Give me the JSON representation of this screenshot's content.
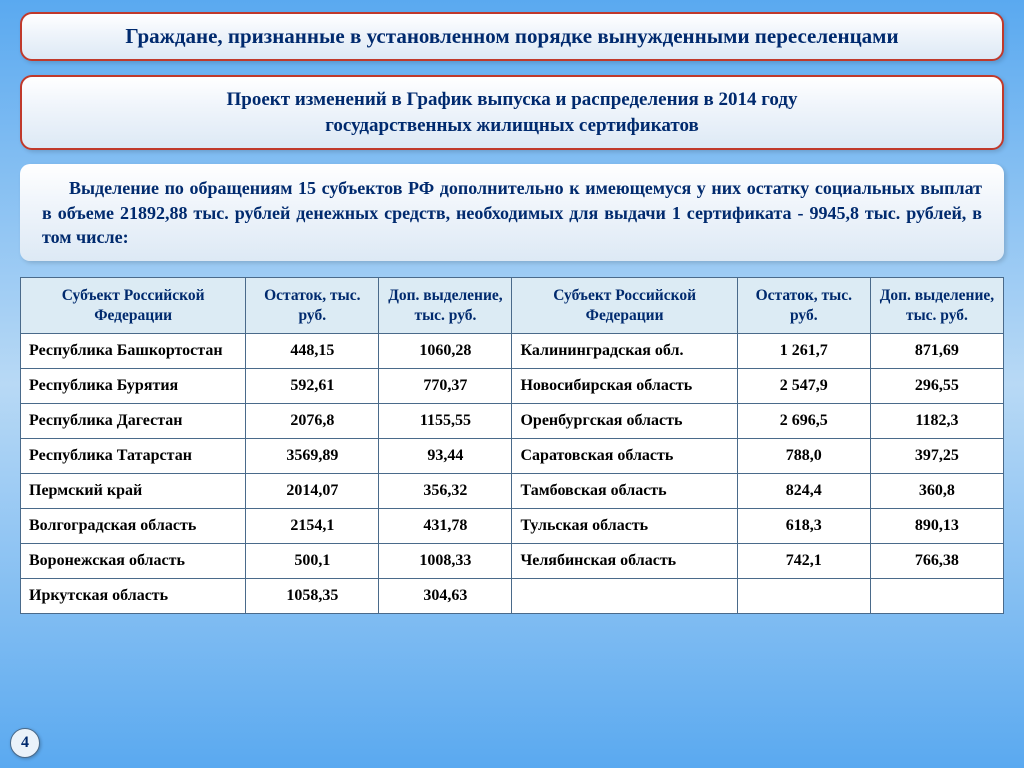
{
  "header": {
    "title": "Граждане, признанные в установленном порядке вынужденными переселенцами"
  },
  "subheader": {
    "line1": "Проект изменений в График выпуска и распределения в 2014 году",
    "line2": "государственных жилищных сертификатов"
  },
  "description": "Выделение по обращениям 15 субъектов РФ дополнительно к имеющемуся у них остатку социальных выплат в объеме 21892,88 тыс. рублей денежных средств, необходимых для выдачи 1 сертификата - 9945,8 тыс. рублей, в том числе:",
  "table": {
    "columns": [
      "Субъект Российской Федерации",
      "Остаток, тыс. руб.",
      "Доп. выделение, тыс. руб.",
      "Субъект Российской Федерации",
      "Остаток, тыс. руб.",
      "Доп. выделение, тыс. руб."
    ],
    "rows": [
      [
        "Республика Башкортостан",
        "448,15",
        "1060,28",
        "Калининградская обл.",
        "1 261,7",
        "871,69"
      ],
      [
        "Республика Бурятия",
        "592,61",
        "770,37",
        "Новосибирская область",
        "2 547,9",
        "296,55"
      ],
      [
        "Республика Дагестан",
        "2076,8",
        "1155,55",
        "Оренбургская область",
        "2 696,5",
        "1182,3"
      ],
      [
        "Республика Татарстан",
        "3569,89",
        "93,44",
        "Саратовская область",
        "788,0",
        "397,25"
      ],
      [
        "Пермский край",
        "2014,07",
        "356,32",
        "Тамбовская область",
        "824,4",
        "360,8"
      ],
      [
        "Волгоградская область",
        "2154,1",
        "431,78",
        "Тульская область",
        "618,3",
        "890,13"
      ],
      [
        "Воронежская область",
        "500,1",
        "1008,33",
        "Челябинская область",
        "742,1",
        "766,38"
      ],
      [
        "Иркутская область",
        "1058,35",
        "304,63",
        "",
        "",
        ""
      ]
    ],
    "header_bg": "#dcebf4",
    "border_color": "#4a6a8a",
    "text_color": "#002a6e"
  },
  "page_number": "4",
  "colors": {
    "accent_red": "#c0392b",
    "heading_blue": "#002a6e",
    "bg_gradient_mid": "#b8d9f5",
    "bg_gradient_edge": "#5aa9f0"
  }
}
